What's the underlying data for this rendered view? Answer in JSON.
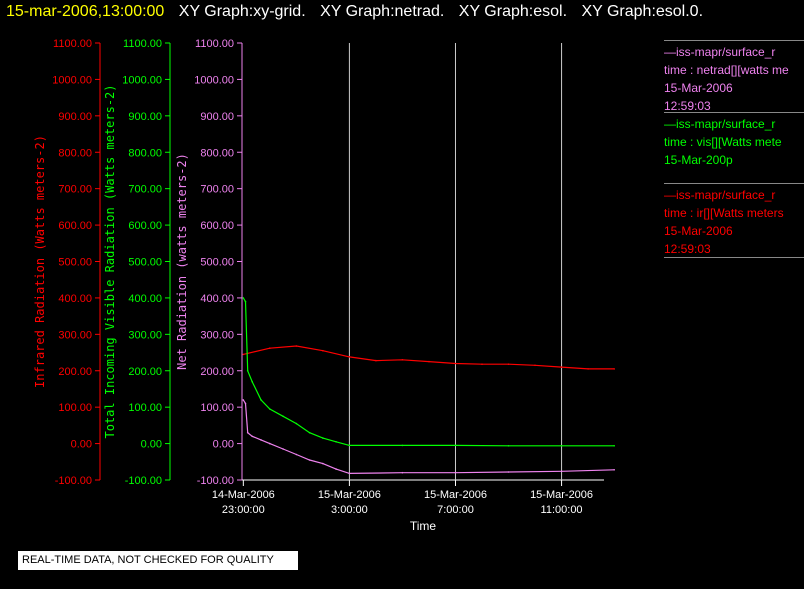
{
  "header": {
    "timestamp": "15-mar-2006,13:00:00",
    "tabs": [
      "XY Graph:xy-grid.",
      "XY Graph:netrad.",
      "XY Graph:esol.",
      "XY Graph:esol.0."
    ]
  },
  "notice": "REAL-TIME DATA, NOT CHECKED FOR QUALITY",
  "legend": [
    {
      "lines": [
        "—iss-mapr/surface_r",
        "time : netrad[][watts me",
        "15-Mar-2006",
        "12:59:03"
      ],
      "color": "#ee82ee"
    },
    {
      "lines": [
        "—iss-mapr/surface_r",
        "time : vis[][Watts mete",
        "15-Mar-200p"
      ],
      "color": "#00ff00"
    },
    {
      "lines": [
        "—iss-mapr/surface_r",
        "time : ir[][Watts meters",
        "15-Mar-2006",
        "12:59:03"
      ],
      "color": "#ff0000"
    }
  ],
  "chart_data": {
    "type": "line",
    "xlabel": "Time",
    "x_ticks": [
      {
        "date": "14-Mar-2006",
        "time": "23:00:00"
      },
      {
        "date": "15-Mar-2006",
        "time": "3:00:00"
      },
      {
        "date": "15-Mar-2006",
        "time": "7:00:00"
      },
      {
        "date": "15-Mar-2006",
        "time": "11:00:00"
      }
    ],
    "x_range_hours": [
      -0.05,
      13.6
    ],
    "ylim": [
      -100,
      1100
    ],
    "axes": [
      {
        "label": "Infrared Radiation (Watts meters-2)",
        "color": "#ff0000",
        "ticks": [
          "-100.00",
          "0.00",
          "100.00",
          "200.00",
          "300.00",
          "400.00",
          "500.00",
          "600.00",
          "700.00",
          "800.00",
          "900.00",
          "1000.00",
          "1100.00"
        ]
      },
      {
        "label": "Total Incoming Visible Radiation (Watts meters-2)",
        "color": "#00ff00",
        "ticks": [
          "-100.00",
          "0.00",
          "100.00",
          "200.00",
          "300.00",
          "400.00",
          "500.00",
          "600.00",
          "700.00",
          "800.00",
          "900.00",
          "1000.00",
          "1100.00"
        ]
      },
      {
        "label": "Net Radiation (watts meters-2)",
        "color": "#ee82ee",
        "ticks": [
          "-100.00",
          "0.00",
          "100.00",
          "200.00",
          "300.00",
          "400.00",
          "500.00",
          "600.00",
          "700.00",
          "800.00",
          "900.00",
          "1000.00",
          "1100.00"
        ]
      }
    ],
    "grid": "vertical",
    "series": [
      {
        "name": "ir",
        "color": "#ff0000",
        "x": [
          "14-Mar-2006 23:00",
          "15-Mar-2006 00:00",
          "15-Mar-2006 01:00",
          "15-Mar-2006 02:00",
          "15-Mar-2006 03:00",
          "15-Mar-2006 04:00",
          "15-Mar-2006 05:00",
          "15-Mar-2006 06:00",
          "15-Mar-2006 07:00",
          "15-Mar-2006 08:00",
          "15-Mar-2006 09:00",
          "15-Mar-2006 10:00",
          "15-Mar-2006 11:00",
          "15-Mar-2006 12:00",
          "15-Mar-2006 12:59"
        ],
        "values": [
          245,
          262,
          268,
          255,
          238,
          228,
          230,
          225,
          220,
          218,
          218,
          215,
          210,
          205,
          205
        ]
      },
      {
        "name": "vis",
        "color": "#00ff00",
        "x": [
          "14-Mar-2006 23:00",
          "14-Mar-2006 23:05",
          "14-Mar-2006 23:10",
          "14-Mar-2006 23:20",
          "14-Mar-2006 23:40",
          "15-Mar-2006 00:00",
          "15-Mar-2006 00:30",
          "15-Mar-2006 01:00",
          "15-Mar-2006 01:30",
          "15-Mar-2006 02:00",
          "15-Mar-2006 02:30",
          "15-Mar-2006 03:00",
          "15-Mar-2006 05:00",
          "15-Mar-2006 07:00",
          "15-Mar-2006 09:00",
          "15-Mar-2006 11:00",
          "15-Mar-2006 12:59"
        ],
        "values": [
          400,
          390,
          200,
          170,
          120,
          95,
          75,
          55,
          30,
          15,
          5,
          -5,
          -5,
          -5,
          -6,
          -6,
          -6
        ]
      },
      {
        "name": "netrad",
        "color": "#ee82ee",
        "x": [
          "14-Mar-2006 23:00",
          "14-Mar-2006 23:05",
          "14-Mar-2006 23:10",
          "14-Mar-2006 23:20",
          "14-Mar-2006 23:40",
          "15-Mar-2006 00:00",
          "15-Mar-2006 00:30",
          "15-Mar-2006 01:00",
          "15-Mar-2006 01:30",
          "15-Mar-2006 02:00",
          "15-Mar-2006 02:30",
          "15-Mar-2006 03:00",
          "15-Mar-2006 05:00",
          "15-Mar-2006 07:00",
          "15-Mar-2006 09:00",
          "15-Mar-2006 11:00",
          "15-Mar-2006 12:59"
        ],
        "values": [
          120,
          110,
          30,
          20,
          10,
          0,
          -15,
          -30,
          -45,
          -55,
          -70,
          -82,
          -80,
          -80,
          -78,
          -76,
          -72
        ]
      }
    ]
  }
}
